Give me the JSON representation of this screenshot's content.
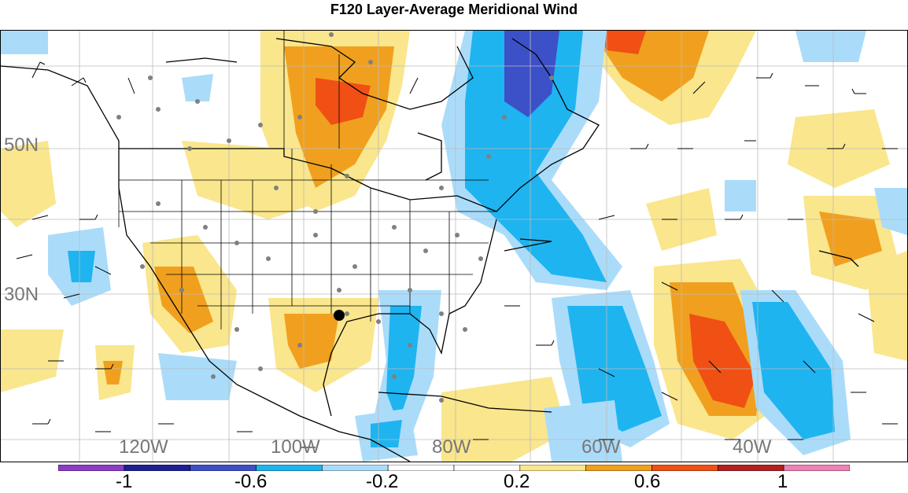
{
  "title": "F120 Layer-Average Meridional Wind",
  "lat_labels": [
    "50N",
    "30N"
  ],
  "lon_labels": [
    "120W",
    "100W",
    "80W",
    "60W",
    "40W"
  ],
  "colorbar": {
    "colors": [
      "#8c3cc8",
      "#1e1e96",
      "#3c50c8",
      "#1eb4f0",
      "#aadcfa",
      "#ffffff",
      "#ffffff",
      "#fae68c",
      "#f0a01e",
      "#f05014",
      "#b41e1e",
      "#f082b4"
    ],
    "labels": [
      "-1",
      "-0.6",
      "-0.2",
      "0.2",
      "0.6",
      "1"
    ]
  },
  "marker": "center-point"
}
